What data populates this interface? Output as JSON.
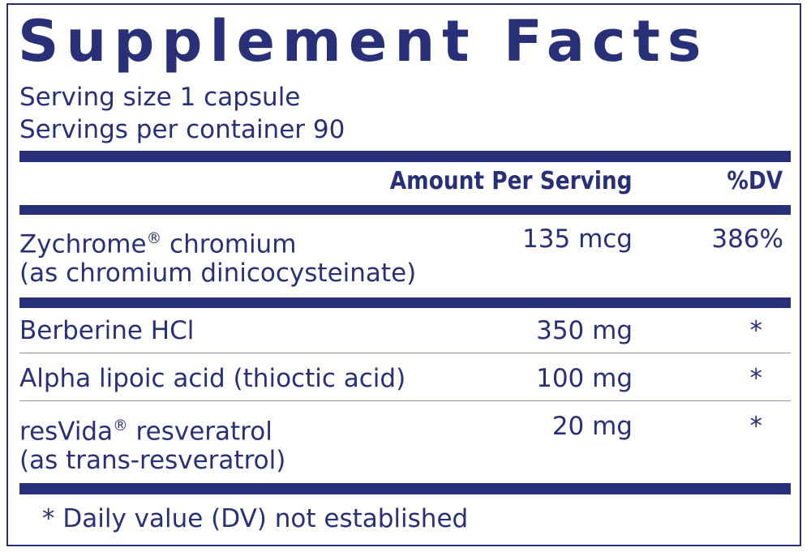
{
  "title": "Supplement Facts",
  "serving_size": "Serving size  1 capsule",
  "servings_per_container": "Servings per container  90",
  "header": {
    "amount": "Amount Per Serving",
    "dv": "%DV"
  },
  "rows": [
    {
      "name": "Zychrome",
      "mark": "®",
      "name_rest": " chromium",
      "sub": "(as chromium dinicocysteinate)",
      "amount": "135 mcg",
      "dv": "386%"
    },
    {
      "name": "Berberine HCl",
      "amount": "350 mg",
      "dv": "*"
    },
    {
      "name": "Alpha lipoic acid (thioctic acid)",
      "amount": "100 mg",
      "dv": "*"
    },
    {
      "name": "resVida",
      "mark": "®",
      "name_rest": " resveratrol",
      "sub": "(as trans-resveratrol)",
      "amount": "20 mg",
      "dv": "*"
    }
  ],
  "footnote": "* Daily value (DV) not established",
  "colors": {
    "primary": "#283078"
  }
}
